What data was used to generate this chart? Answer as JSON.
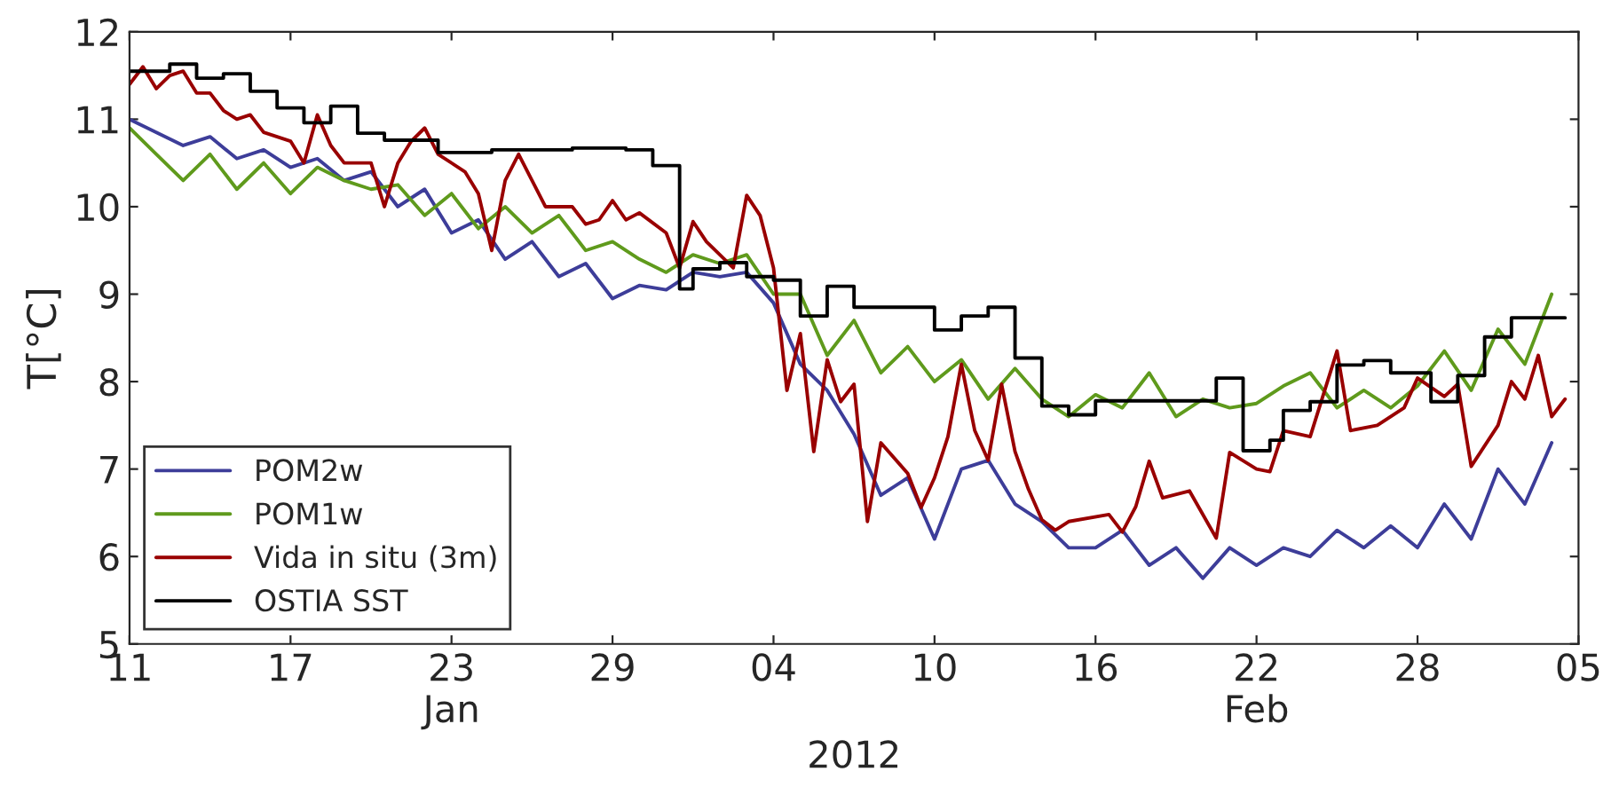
{
  "chart_data": {
    "type": "line",
    "xlabel": "2012",
    "ylabel": "T[°C]",
    "xlim": [
      "2012-01-11",
      "2012-03-05"
    ],
    "xticks": [
      {
        "value": "2012-01-11",
        "label": "11"
      },
      {
        "value": "2012-01-17",
        "label": "17"
      },
      {
        "value": "2012-01-23",
        "label": "23\nJan"
      },
      {
        "value": "2012-01-29",
        "label": "29"
      },
      {
        "value": "2012-02-04",
        "label": "04"
      },
      {
        "value": "2012-02-10",
        "label": "10"
      },
      {
        "value": "2012-02-16",
        "label": "16"
      },
      {
        "value": "2012-02-22",
        "label": "22\nFeb"
      },
      {
        "value": "2012-02-28",
        "label": "28"
      },
      {
        "value": "2012-03-05",
        "label": "05"
      }
    ],
    "ylim": [
      5,
      12
    ],
    "yticks": [
      5,
      6,
      7,
      8,
      9,
      10,
      11,
      12
    ],
    "grid": false,
    "legend": "bottom left",
    "series": [
      {
        "name": "POM2w",
        "color": "#3d3d99",
        "x": [
          "2012-01-11",
          "2012-01-12",
          "2012-01-13",
          "2012-01-14",
          "2012-01-15",
          "2012-01-16",
          "2012-01-17",
          "2012-01-18",
          "2012-01-19",
          "2012-01-20",
          "2012-01-21",
          "2012-01-22",
          "2012-01-23",
          "2012-01-24",
          "2012-01-25",
          "2012-01-26",
          "2012-01-27",
          "2012-01-28",
          "2012-01-29",
          "2012-01-30",
          "2012-01-31",
          "2012-02-01",
          "2012-02-02",
          "2012-02-03",
          "2012-02-04",
          "2012-02-05",
          "2012-02-06",
          "2012-02-07",
          "2012-02-08",
          "2012-02-09",
          "2012-02-10",
          "2012-02-11",
          "2012-02-12",
          "2012-02-13",
          "2012-02-14",
          "2012-02-15",
          "2012-02-16",
          "2012-02-17",
          "2012-02-18",
          "2012-02-19",
          "2012-02-20",
          "2012-02-21",
          "2012-02-22",
          "2012-02-23",
          "2012-02-24",
          "2012-02-25",
          "2012-02-26",
          "2012-02-27",
          "2012-02-28",
          "2012-02-29",
          "2012-03-01",
          "2012-03-02",
          "2012-03-03",
          "2012-03-04"
        ],
        "values": [
          11.0,
          10.85,
          10.7,
          10.8,
          10.55,
          10.65,
          10.45,
          10.55,
          10.3,
          10.4,
          10.0,
          10.2,
          9.7,
          9.85,
          9.4,
          9.6,
          9.2,
          9.35,
          8.95,
          9.1,
          9.05,
          9.25,
          9.2,
          9.25,
          8.9,
          8.2,
          7.9,
          7.4,
          6.7,
          6.9,
          6.2,
          7.0,
          7.1,
          6.6,
          6.4,
          6.1,
          6.1,
          6.3,
          5.9,
          6.1,
          5.75,
          6.1,
          5.9,
          6.1,
          6.0,
          6.3,
          6.1,
          6.35,
          6.1,
          6.6,
          6.2,
          7.0,
          6.6,
          7.3
        ]
      },
      {
        "name": "POM1w",
        "color": "#5f9a1c",
        "x": [
          "2012-01-11",
          "2012-01-12",
          "2012-01-13",
          "2012-01-14",
          "2012-01-15",
          "2012-01-16",
          "2012-01-17",
          "2012-01-18",
          "2012-01-19",
          "2012-01-20",
          "2012-01-21",
          "2012-01-22",
          "2012-01-23",
          "2012-01-24",
          "2012-01-25",
          "2012-01-26",
          "2012-01-27",
          "2012-01-28",
          "2012-01-29",
          "2012-01-30",
          "2012-01-31",
          "2012-02-01",
          "2012-02-02",
          "2012-02-03",
          "2012-02-04",
          "2012-02-05",
          "2012-02-06",
          "2012-02-07",
          "2012-02-08",
          "2012-02-09",
          "2012-02-10",
          "2012-02-11",
          "2012-02-12",
          "2012-02-13",
          "2012-02-14",
          "2012-02-15",
          "2012-02-16",
          "2012-02-17",
          "2012-02-18",
          "2012-02-19",
          "2012-02-20",
          "2012-02-21",
          "2012-02-22",
          "2012-02-23",
          "2012-02-24",
          "2012-02-25",
          "2012-02-26",
          "2012-02-27",
          "2012-02-28",
          "2012-02-29",
          "2012-03-01",
          "2012-03-02",
          "2012-03-03",
          "2012-03-04"
        ],
        "values": [
          10.9,
          10.6,
          10.3,
          10.6,
          10.2,
          10.5,
          10.15,
          10.45,
          10.3,
          10.2,
          10.25,
          9.9,
          10.15,
          9.75,
          10.0,
          9.7,
          9.9,
          9.5,
          9.6,
          9.4,
          9.25,
          9.45,
          9.35,
          9.45,
          9.0,
          9.0,
          8.3,
          8.7,
          8.1,
          8.4,
          8.0,
          8.25,
          7.8,
          8.15,
          7.8,
          7.6,
          7.85,
          7.7,
          8.1,
          7.6,
          7.8,
          7.7,
          7.75,
          7.95,
          8.1,
          7.7,
          7.9,
          7.7,
          7.95,
          8.35,
          7.9,
          8.6,
          8.2,
          9.0
        ]
      },
      {
        "name": "Vida in situ (3m)",
        "color": "#990000",
        "x": [
          "2012-01-11",
          "2012-01-11T12:00",
          "2012-01-12",
          "2012-01-12T12:00",
          "2012-01-13",
          "2012-01-13T12:00",
          "2012-01-14",
          "2012-01-14T12:00",
          "2012-01-15",
          "2012-01-15T12:00",
          "2012-01-16",
          "2012-01-17",
          "2012-01-17T12:00",
          "2012-01-18",
          "2012-01-18T12:00",
          "2012-01-19",
          "2012-01-20",
          "2012-01-20T12:00",
          "2012-01-21",
          "2012-01-21T12:00",
          "2012-01-22",
          "2012-01-22T12:00",
          "2012-01-23T12:00",
          "2012-01-24",
          "2012-01-24T12:00",
          "2012-01-25",
          "2012-01-25T12:00",
          "2012-01-26",
          "2012-01-26T12:00",
          "2012-01-27T12:00",
          "2012-01-28",
          "2012-01-28T12:00",
          "2012-01-29",
          "2012-01-29T12:00",
          "2012-01-30",
          "2012-01-31",
          "2012-01-31T12:00",
          "2012-02-01",
          "2012-02-01T12:00",
          "2012-02-02T12:00",
          "2012-02-03",
          "2012-02-03T12:00",
          "2012-02-04",
          "2012-02-04T12:00",
          "2012-02-05",
          "2012-02-05T12:00",
          "2012-02-06",
          "2012-02-06T12:00",
          "2012-02-07",
          "2012-02-07T12:00",
          "2012-02-08",
          "2012-02-09",
          "2012-02-09T12:00",
          "2012-02-10",
          "2012-02-10T12:00",
          "2012-02-11",
          "2012-02-11T12:00",
          "2012-02-12",
          "2012-02-12T12:00",
          "2012-02-13",
          "2012-02-13T12:00",
          "2012-02-14",
          "2012-02-14T12:00",
          "2012-02-15",
          "2012-02-16T12:00",
          "2012-02-17",
          "2012-02-17T12:00",
          "2012-02-18",
          "2012-02-18T12:00",
          "2012-02-19T12:00",
          "2012-02-20T12:00",
          "2012-02-21",
          "2012-02-22",
          "2012-02-22T12:00",
          "2012-02-23",
          "2012-02-24",
          "2012-02-25",
          "2012-02-25T12:00",
          "2012-02-26T12:00",
          "2012-02-27T12:00",
          "2012-02-28",
          "2012-02-29",
          "2012-02-29T12:00",
          "2012-03-01",
          "2012-03-02",
          "2012-03-02T12:00",
          "2012-03-03",
          "2012-03-03T12:00",
          "2012-03-04",
          "2012-03-04T12:00"
        ],
        "values": [
          11.4,
          11.6,
          11.35,
          11.5,
          11.55,
          11.3,
          11.3,
          11.1,
          11.0,
          11.05,
          10.85,
          10.75,
          10.5,
          11.05,
          10.7,
          10.5,
          10.5,
          10.0,
          10.5,
          10.75,
          10.9,
          10.6,
          10.4,
          10.15,
          9.5,
          10.3,
          10.6,
          10.3,
          10.0,
          10.0,
          9.8,
          9.85,
          10.07,
          9.85,
          9.93,
          9.7,
          9.3,
          9.83,
          9.6,
          9.3,
          10.13,
          9.9,
          9.3,
          7.9,
          8.55,
          7.2,
          8.25,
          7.77,
          7.97,
          6.4,
          7.3,
          6.95,
          6.56,
          6.9,
          7.37,
          8.2,
          7.44,
          7.1,
          7.97,
          7.2,
          6.77,
          6.42,
          6.3,
          6.4,
          6.48,
          6.28,
          6.57,
          7.09,
          6.67,
          6.75,
          6.21,
          7.19,
          7.0,
          6.97,
          7.44,
          7.37,
          8.35,
          7.44,
          7.5,
          7.7,
          8.04,
          7.83,
          7.97,
          7.03,
          7.5,
          8.0,
          7.8,
          8.3,
          7.6,
          7.8
        ]
      },
      {
        "name": "OSTIA SST",
        "color": "#000000",
        "type": "step",
        "x": [
          "2012-01-11",
          "2012-01-12T12:00",
          "2012-01-13T12:00",
          "2012-01-14T12:00",
          "2012-01-15T12:00",
          "2012-01-16T12:00",
          "2012-01-17T12:00",
          "2012-01-18T12:00",
          "2012-01-19T12:00",
          "2012-01-20T12:00",
          "2012-01-22T12:00",
          "2012-01-24T12:00",
          "2012-01-27T12:00",
          "2012-01-29T12:00",
          "2012-01-30T12:00",
          "2012-01-31T12:00",
          "2012-02-01",
          "2012-02-02",
          "2012-02-03",
          "2012-02-04",
          "2012-02-05",
          "2012-02-06",
          "2012-02-07",
          "2012-02-10",
          "2012-02-11",
          "2012-02-12",
          "2012-02-13",
          "2012-02-14",
          "2012-02-15",
          "2012-02-16",
          "2012-02-20T12:00",
          "2012-02-21T12:00",
          "2012-02-22T12:00",
          "2012-02-23",
          "2012-02-24",
          "2012-02-25",
          "2012-02-26",
          "2012-02-27",
          "2012-02-28T12:00",
          "2012-02-29T12:00",
          "2012-03-01T12:00",
          "2012-03-02T12:00",
          "2012-03-04T12:00"
        ],
        "values": [
          11.55,
          11.63,
          11.47,
          11.52,
          11.32,
          11.13,
          10.96,
          11.15,
          10.84,
          10.76,
          10.62,
          10.65,
          10.67,
          10.65,
          10.47,
          9.06,
          9.29,
          9.36,
          9.2,
          9.16,
          8.75,
          9.09,
          8.85,
          8.59,
          8.75,
          8.85,
          8.27,
          7.72,
          7.62,
          7.78,
          8.04,
          7.21,
          7.33,
          7.67,
          7.77,
          8.19,
          8.24,
          8.1,
          7.77,
          8.07,
          8.51,
          8.73,
          8.73
        ]
      }
    ]
  }
}
